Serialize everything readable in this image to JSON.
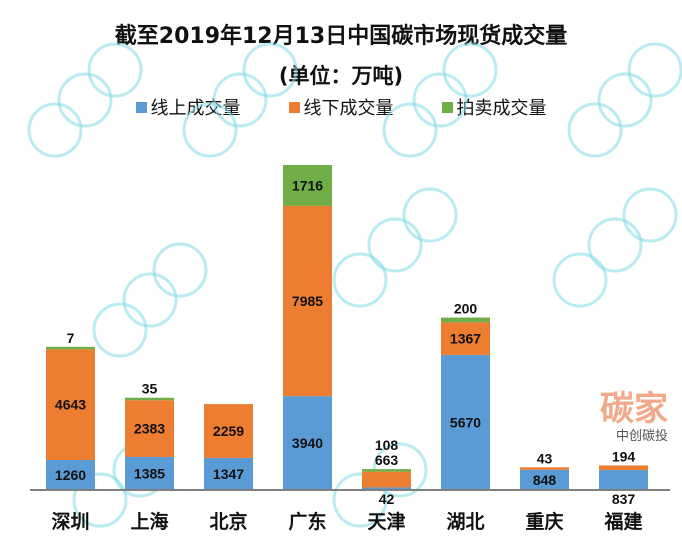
{
  "chart_data": {
    "type": "bar",
    "stacked": true,
    "title": "截至2019年12月13日中国碳市场现货成交量",
    "subtitle": "(单位：万吨)",
    "xlabel": "",
    "ylabel": "",
    "categories": [
      "深圳",
      "上海",
      "北京",
      "广东",
      "天津",
      "湖北",
      "重庆",
      "福建"
    ],
    "series": [
      {
        "name": "线上成交量",
        "color": "#5B9BD5",
        "values": [
          1260,
          1385,
          1347,
          3940,
          42,
          5670,
          848,
          837
        ]
      },
      {
        "name": "线下成交量",
        "color": "#ED7D31",
        "values": [
          4643,
          2383,
          2259,
          7985,
          663,
          1367,
          43,
          194
        ]
      },
      {
        "name": "拍卖成交量",
        "color": "#70AD47",
        "values": [
          7,
          35,
          0,
          1716,
          108,
          200,
          0,
          0
        ]
      }
    ],
    "labels": [
      [
        "1260",
        "4643",
        "7"
      ],
      [
        "1385",
        "2383",
        "35"
      ],
      [
        "1347",
        "2259",
        ""
      ],
      [
        "3940",
        "7985",
        "1716"
      ],
      [
        "42",
        "663",
        "108"
      ],
      [
        "5670",
        "1367",
        "200"
      ],
      [
        "848",
        "43",
        ""
      ],
      [
        "837",
        "194",
        ""
      ]
    ],
    "ylim": [
      0,
      14000
    ],
    "grid": false,
    "legend_position": "top"
  },
  "watermark": {
    "text": "中创碳投",
    "brand": "碳家"
  }
}
